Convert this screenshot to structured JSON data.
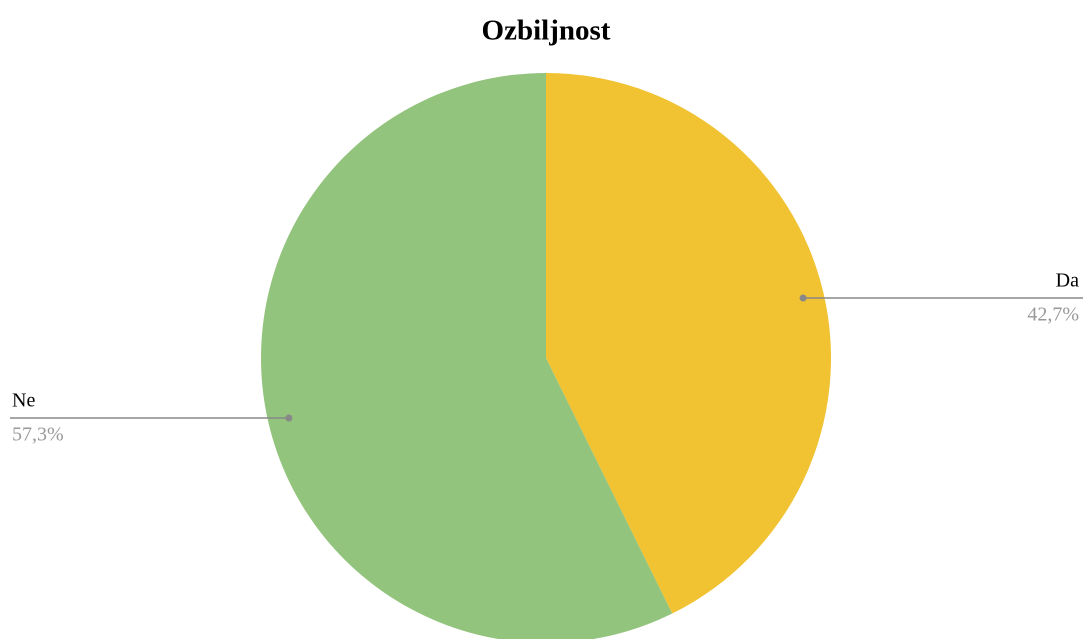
{
  "chart_data": {
    "type": "pie",
    "title": "Ozbiljnost",
    "categories": [
      "Da",
      "Ne"
    ],
    "values": [
      42.7,
      57.3
    ],
    "value_labels": [
      "42,7%",
      "57,3%"
    ],
    "colors": [
      "#f1c232",
      "#93c47d"
    ]
  }
}
